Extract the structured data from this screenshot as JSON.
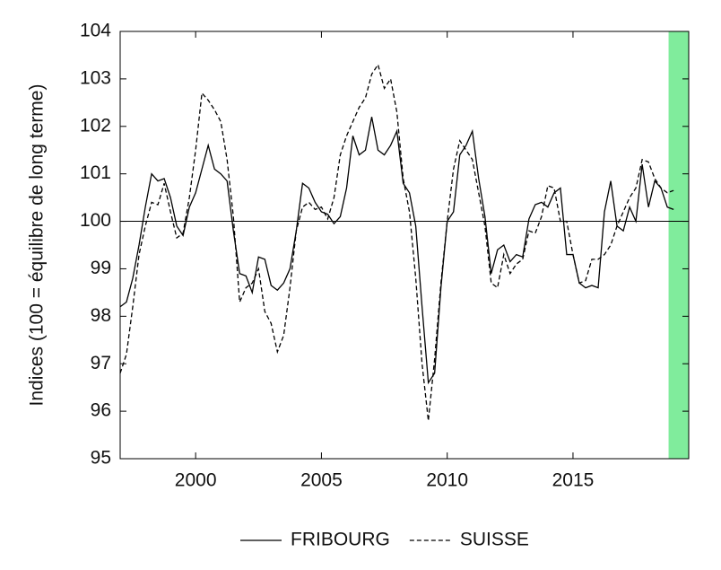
{
  "chart_data": {
    "type": "line",
    "ylabel": "Indices (100 = équilibre de long terme)",
    "x": [
      1997,
      1997.25,
      1997.5,
      1997.75,
      1998,
      1998.25,
      1998.5,
      1998.75,
      1999,
      1999.25,
      1999.5,
      1999.75,
      2000,
      2000.25,
      2000.5,
      2000.75,
      2001,
      2001.25,
      2001.5,
      2001.75,
      2002,
      2002.25,
      2002.5,
      2002.75,
      2003,
      2003.25,
      2003.5,
      2003.75,
      2004,
      2004.25,
      2004.5,
      2004.75,
      2005,
      2005.25,
      2005.5,
      2005.75,
      2006,
      2006.25,
      2006.5,
      2006.75,
      2007,
      2007.25,
      2007.5,
      2007.75,
      2008,
      2008.25,
      2008.5,
      2008.75,
      2009,
      2009.25,
      2009.5,
      2009.75,
      2010,
      2010.25,
      2010.5,
      2010.75,
      2011,
      2011.25,
      2011.5,
      2011.75,
      2012,
      2012.25,
      2012.5,
      2012.75,
      2013,
      2013.25,
      2013.5,
      2013.75,
      2014,
      2014.25,
      2014.5,
      2014.75,
      2015,
      2015.25,
      2015.5,
      2015.75,
      2016,
      2016.25,
      2016.5,
      2016.75,
      2017,
      2017.25,
      2017.5,
      2017.75,
      2018,
      2018.25,
      2018.5,
      2018.75,
      2019
    ],
    "series": [
      {
        "name": "FRIBOURG",
        "color": "#000000",
        "dash": "solid",
        "values": [
          98.2,
          98.3,
          98.8,
          99.5,
          100.3,
          101.0,
          100.85,
          100.9,
          100.5,
          99.9,
          99.7,
          100.3,
          100.6,
          101.1,
          101.6,
          101.1,
          101.0,
          100.85,
          99.8,
          98.9,
          98.85,
          98.5,
          99.25,
          99.2,
          98.65,
          98.55,
          98.7,
          99.0,
          99.8,
          100.8,
          100.7,
          100.4,
          100.2,
          100.15,
          99.95,
          100.1,
          100.7,
          101.8,
          101.4,
          101.5,
          102.2,
          101.5,
          101.4,
          101.6,
          101.9,
          100.8,
          100.6,
          99.9,
          98.2,
          96.6,
          96.8,
          98.6,
          100.0,
          100.2,
          101.4,
          101.6,
          101.9,
          100.9,
          100.1,
          98.9,
          99.4,
          99.5,
          99.15,
          99.3,
          99.25,
          100.05,
          100.35,
          100.4,
          100.3,
          100.6,
          100.7,
          99.3,
          99.3,
          98.7,
          98.6,
          98.65,
          98.6,
          100.2,
          100.85,
          99.9,
          99.8,
          100.3,
          100.0,
          101.2,
          100.3,
          100.85,
          100.7,
          100.3,
          100.25
        ]
      },
      {
        "name": "SUISSE",
        "color": "#000000",
        "dash": "dashed",
        "values": [
          96.8,
          97.2,
          98.2,
          99.3,
          99.9,
          100.4,
          100.35,
          100.8,
          100.2,
          99.65,
          99.75,
          100.5,
          101.5,
          102.7,
          102.55,
          102.35,
          102.1,
          101.3,
          100.1,
          98.3,
          98.6,
          98.7,
          99.0,
          98.1,
          97.85,
          97.25,
          97.6,
          98.6,
          99.8,
          100.3,
          100.4,
          100.25,
          100.3,
          100.05,
          100.5,
          101.4,
          101.8,
          102.1,
          102.4,
          102.6,
          103.1,
          103.3,
          102.8,
          103.0,
          102.3,
          100.9,
          100.2,
          98.8,
          97.0,
          95.8,
          97.1,
          98.7,
          100.0,
          101.1,
          101.7,
          101.5,
          101.3,
          100.6,
          99.9,
          98.7,
          98.6,
          99.3,
          98.9,
          99.1,
          99.2,
          99.8,
          99.75,
          100.1,
          100.75,
          100.7,
          100.0,
          100.0,
          99.3,
          98.7,
          98.75,
          99.2,
          99.2,
          99.3,
          99.5,
          99.9,
          100.2,
          100.5,
          100.7,
          101.3,
          101.25,
          100.9,
          100.7,
          100.6,
          100.65
        ]
      }
    ],
    "xlim": [
      1997,
      2019.6
    ],
    "xticks": [
      2000,
      2005,
      2010,
      2015
    ],
    "ylim": [
      95,
      104
    ],
    "yticks": [
      95,
      96,
      97,
      98,
      99,
      100,
      101,
      102,
      103,
      104
    ],
    "reference_line": 100,
    "shaded_x": [
      2018.8,
      2019.6
    ],
    "shade_color": "#80ec9c",
    "legend": "bottom"
  }
}
